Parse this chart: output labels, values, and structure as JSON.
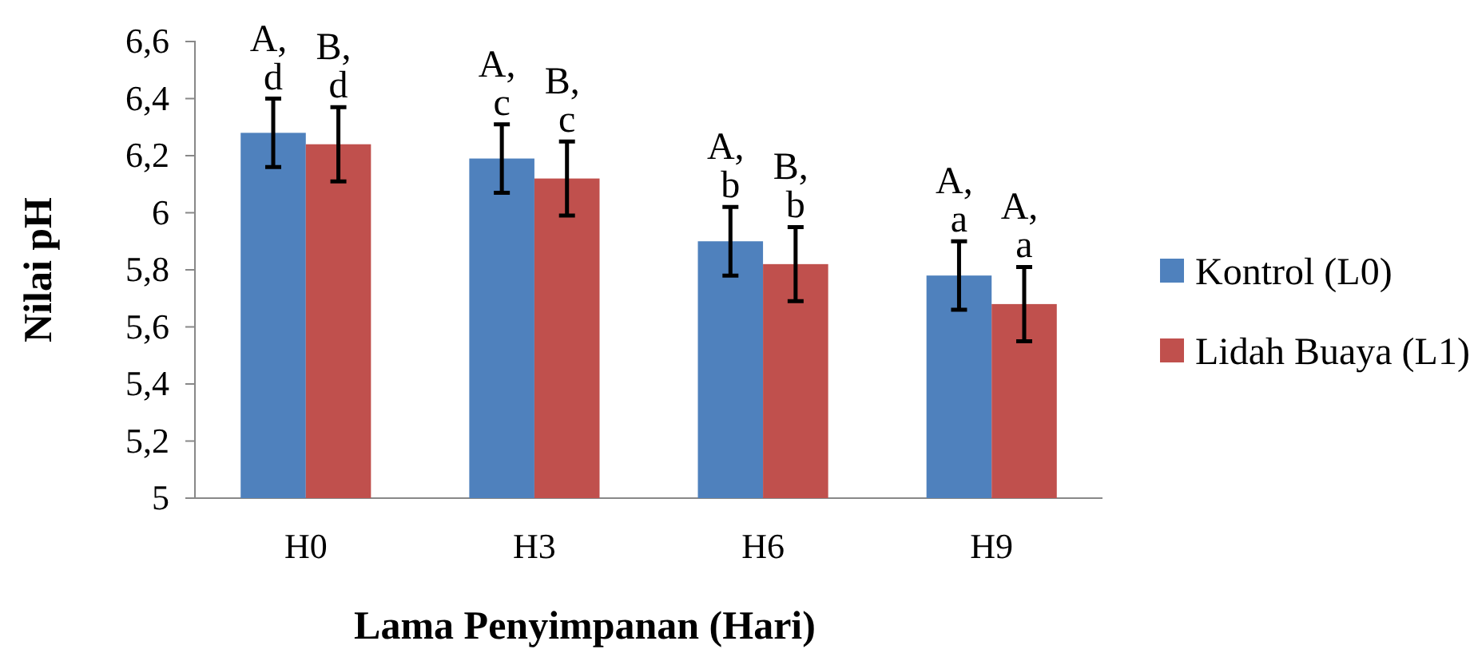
{
  "chart_data": {
    "type": "bar",
    "xlabel": "Lama Penyimpanan (Hari)",
    "ylabel": "Nilai pH",
    "categories": [
      "H0",
      "H3",
      "H6",
      "H9"
    ],
    "series": [
      {
        "name": "Kontrol (L0)",
        "color": "#4f81bd",
        "values": [
          6.28,
          6.19,
          5.9,
          5.78
        ],
        "errors": [
          0.12,
          0.12,
          0.12,
          0.12
        ]
      },
      {
        "name": "Lidah Buaya (L1)",
        "color": "#c0504d",
        "values": [
          6.24,
          6.12,
          5.82,
          5.68
        ],
        "errors": [
          0.13,
          0.13,
          0.13,
          0.13
        ]
      }
    ],
    "ylim": [
      5,
      6.6
    ],
    "yticks": [
      {
        "value": 5,
        "label": "5"
      },
      {
        "value": 5.2,
        "label": "5,2"
      },
      {
        "value": 5.4,
        "label": "5,4"
      },
      {
        "value": 5.6,
        "label": "5,6"
      },
      {
        "value": 5.8,
        "label": "5,8"
      },
      {
        "value": 6,
        "label": "6"
      },
      {
        "value": 6.2,
        "label": "6,2"
      },
      {
        "value": 6.4,
        "label": "6,4"
      },
      {
        "value": 6.6,
        "label": "6,6"
      }
    ],
    "grid": false,
    "legend": "right",
    "annotations": [
      {
        "text": "A, d",
        "x": "H0",
        "y": 6.28
      },
      {
        "text": "B, d",
        "x": "H0",
        "y": 6.24
      },
      {
        "text": "A, c",
        "x": "H3",
        "y": 6.19
      },
      {
        "text": "B, c",
        "x": "H3",
        "y": 6.12
      },
      {
        "text": "A, b",
        "x": "H6",
        "y": 5.9
      },
      {
        "text": "B, b",
        "x": "H6",
        "y": 5.82
      },
      {
        "text": "A, a",
        "x": "H9",
        "y": 5.78
      },
      {
        "text": "A, a",
        "x": "H9",
        "y": 5.68
      }
    ]
  }
}
